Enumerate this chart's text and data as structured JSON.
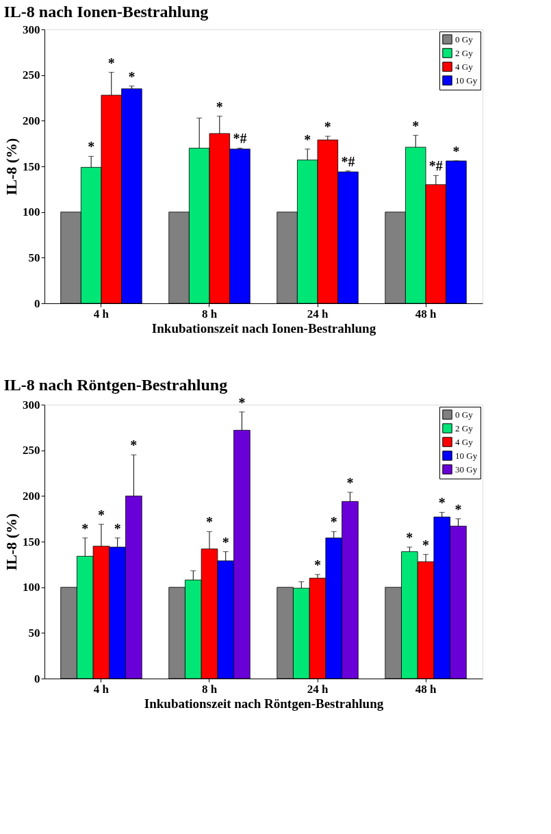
{
  "chart_data": [
    {
      "type": "bar",
      "title": "IL-8 nach Ionen-Bestrahlung",
      "xlabel": "Inkubationszeit nach Ionen-Bestrahlung",
      "ylabel": "IL-8 (%)",
      "categories": [
        "4 h",
        "8 h",
        "24 h",
        "48 h"
      ],
      "series": [
        {
          "name": "0 Gy",
          "color": "#808080",
          "values": [
            100,
            100,
            100,
            100
          ],
          "errors": [
            null,
            null,
            null,
            null
          ],
          "value_labels": [
            null,
            null,
            null,
            null
          ]
        },
        {
          "name": "2 Gy",
          "color": "#00e676",
          "values": [
            149,
            170,
            157,
            171
          ],
          "errors": [
            [
              149,
              161
            ],
            [
              170,
              203
            ],
            [
              157,
              169
            ],
            [
              171,
              184
            ]
          ],
          "value_labels": [
            "*",
            null,
            "*",
            "*"
          ]
        },
        {
          "name": "4 Gy",
          "color": "#ff0000",
          "values": [
            228,
            186,
            179,
            130
          ],
          "errors": [
            [
              228,
              253
            ],
            [
              186,
              205
            ],
            [
              179,
              183
            ],
            [
              130,
              140
            ]
          ],
          "value_labels": [
            "*",
            "*",
            "*",
            "*#"
          ]
        },
        {
          "name": "10 Gy",
          "color": "#0000ff",
          "values": [
            235,
            169,
            144,
            156
          ],
          "errors": [
            [
              235,
              238
            ],
            [
              169,
              170
            ],
            [
              144,
              145
            ],
            [
              156,
              156
            ]
          ],
          "value_labels": [
            "*",
            "*#",
            "*#",
            "*"
          ]
        }
      ],
      "ylim": [
        0,
        300
      ],
      "yticks": [
        0,
        50,
        100,
        150,
        200,
        250,
        300
      ],
      "legend": "top right"
    },
    {
      "type": "bar",
      "title": "IL-8 nach Röntgen-Bestrahlung",
      "xlabel": "Inkubationszeit nach Röntgen-Bestrahlung",
      "ylabel": "IL-8 (%)",
      "categories": [
        "4 h",
        "8 h",
        "24 h",
        "48 h"
      ],
      "series": [
        {
          "name": "0 Gy",
          "color": "#808080",
          "values": [
            100,
            100,
            100,
            100
          ],
          "errors": [
            null,
            null,
            null,
            null
          ],
          "value_labels": [
            null,
            null,
            null,
            null
          ]
        },
        {
          "name": "2 Gy",
          "color": "#00e676",
          "values": [
            134,
            108,
            99,
            139
          ],
          "errors": [
            [
              134,
              154
            ],
            [
              108,
              118
            ],
            [
              99,
              106
            ],
            [
              139,
              144
            ]
          ],
          "value_labels": [
            "*",
            null,
            null,
            "*"
          ]
        },
        {
          "name": "4 Gy",
          "color": "#ff0000",
          "values": [
            145,
            142,
            110,
            128
          ],
          "errors": [
            [
              145,
              169
            ],
            [
              142,
              161
            ],
            [
              110,
              114
            ],
            [
              128,
              136
            ]
          ],
          "value_labels": [
            "*",
            "*",
            "*",
            "*"
          ]
        },
        {
          "name": "10 Gy",
          "color": "#0000ff",
          "values": [
            144,
            129,
            154,
            177
          ],
          "errors": [
            [
              144,
              154
            ],
            [
              129,
              139
            ],
            [
              154,
              161
            ],
            [
              177,
              182
            ]
          ],
          "value_labels": [
            "*",
            "*",
            "*",
            "*"
          ]
        },
        {
          "name": "30 Gy",
          "color": "#6a00d8",
          "values": [
            200,
            272,
            194,
            167
          ],
          "errors": [
            [
              200,
              245
            ],
            [
              272,
              292
            ],
            [
              194,
              204
            ],
            [
              167,
              175
            ]
          ],
          "value_labels": [
            "*",
            "*",
            "*",
            "*"
          ]
        }
      ],
      "ylim": [
        0,
        300
      ],
      "yticks": [
        0,
        50,
        100,
        150,
        200,
        250,
        300
      ],
      "legend": "top right"
    }
  ]
}
